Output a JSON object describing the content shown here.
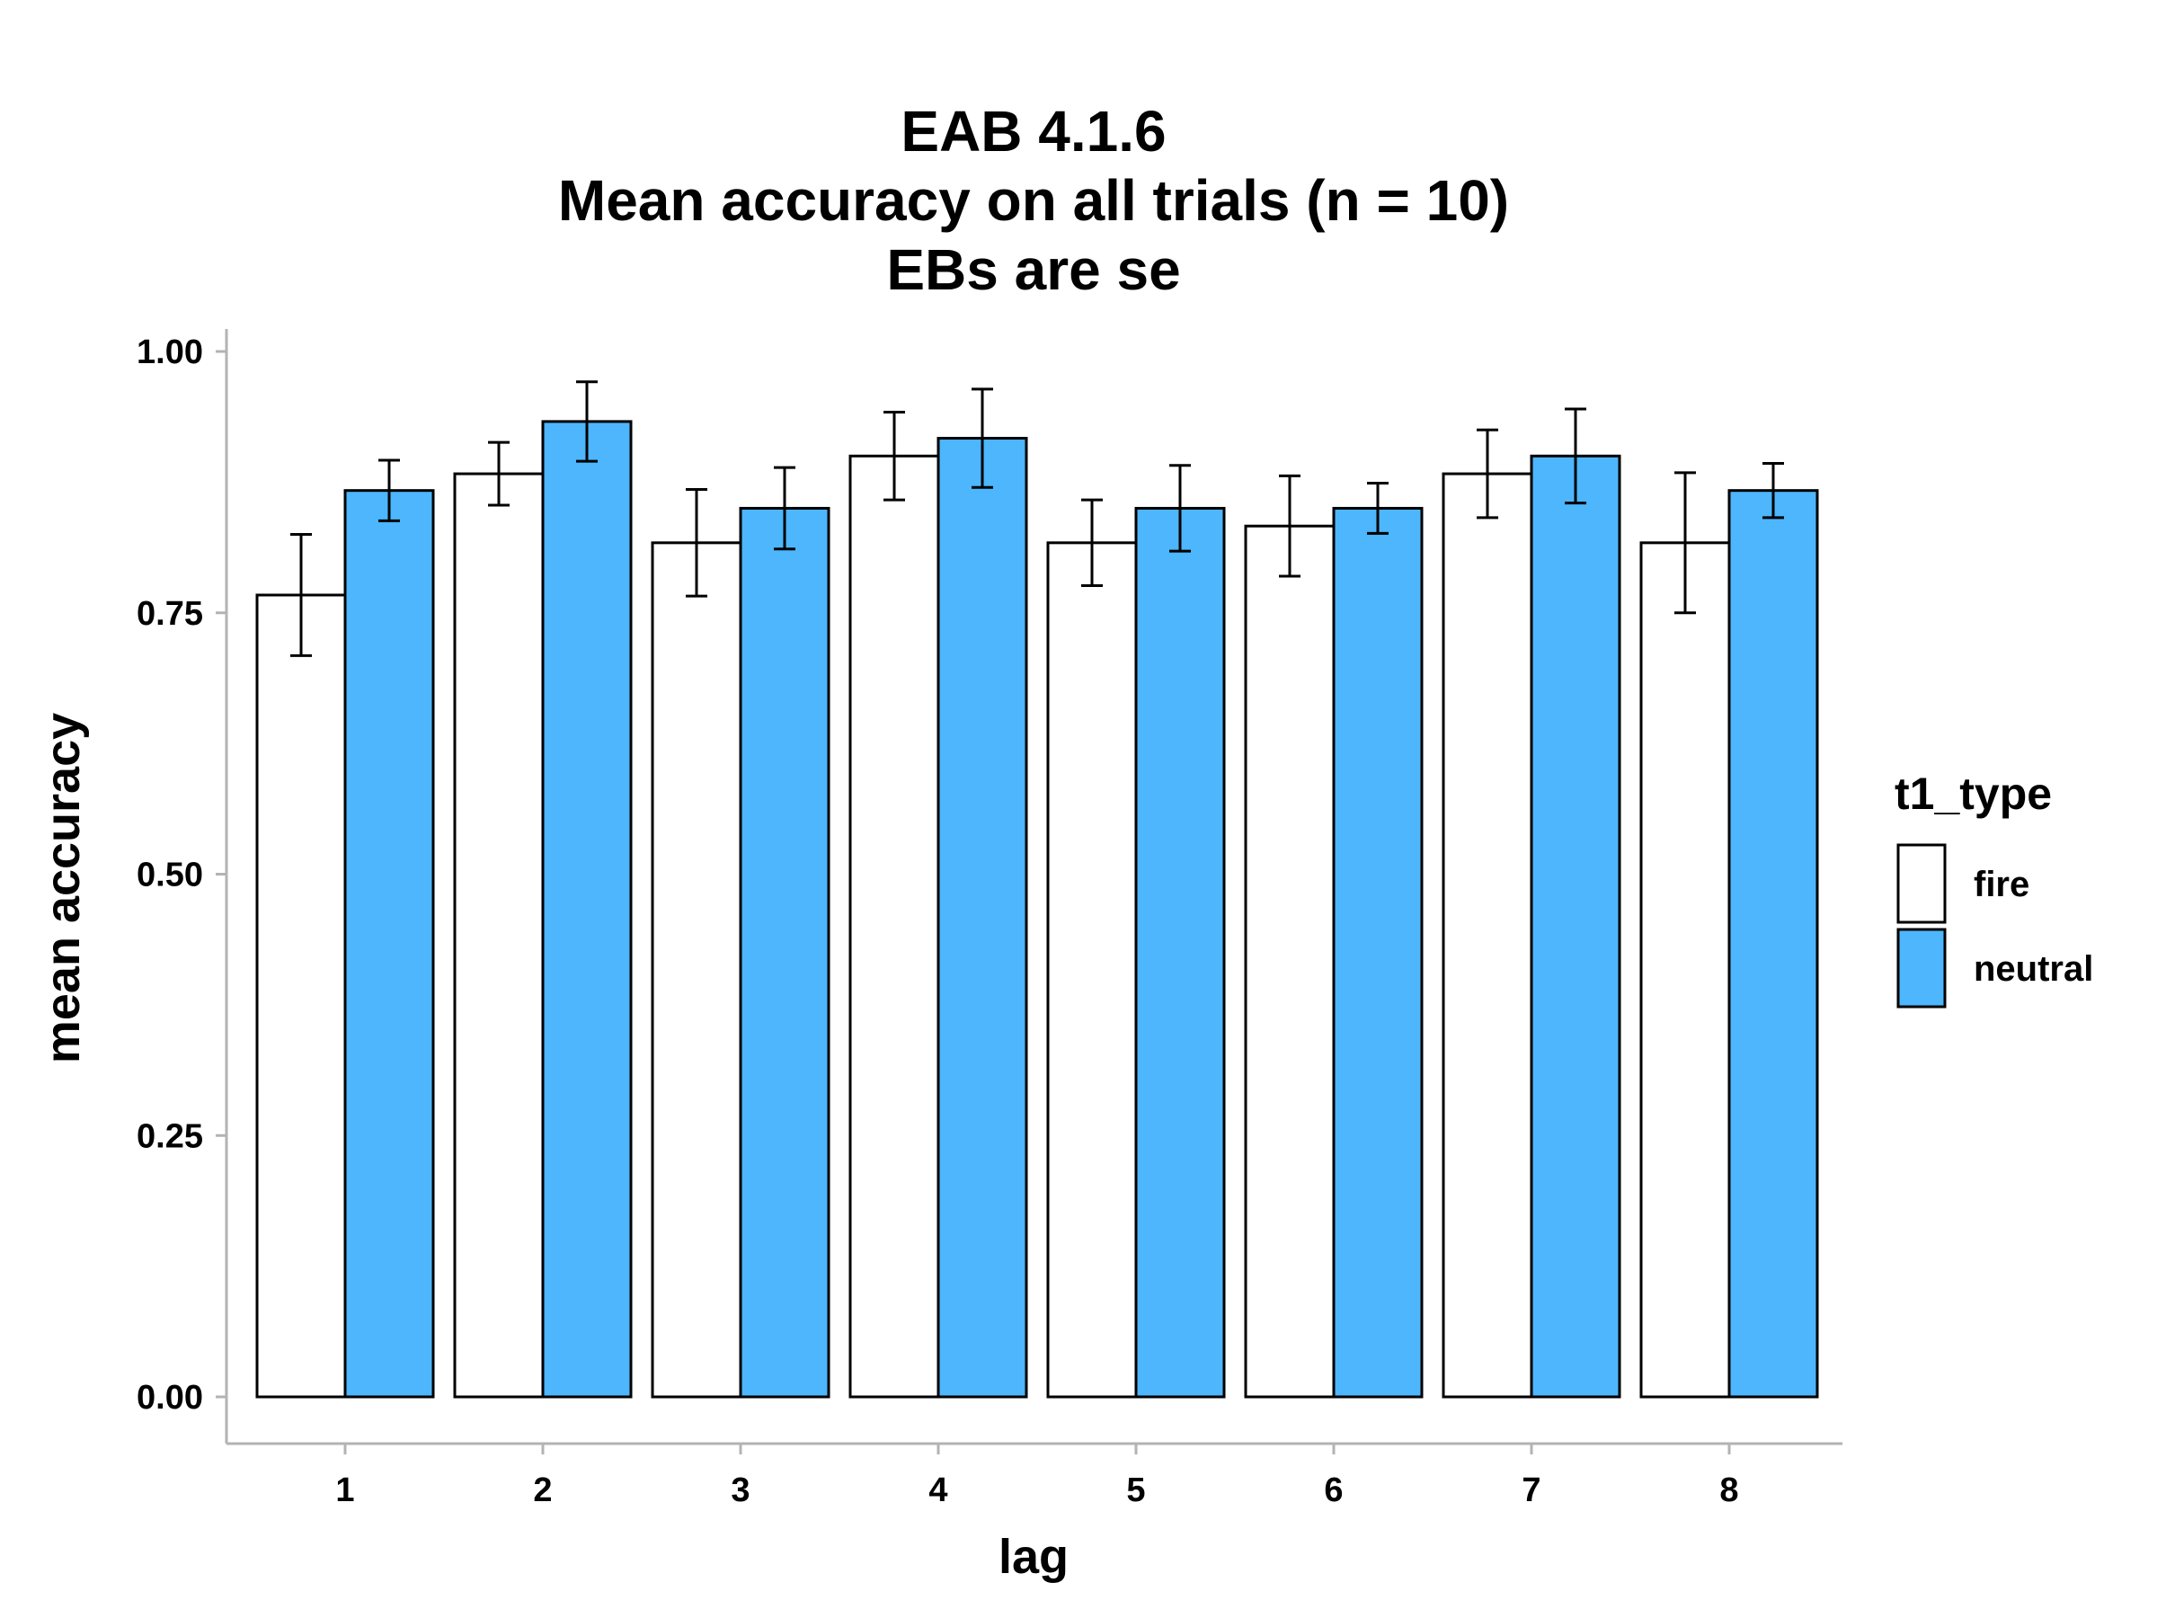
{
  "chart_data": {
    "type": "bar",
    "title_lines": [
      "EAB 4.1.6",
      "Mean accuracy on all trials (n = 10)",
      "EBs are se"
    ],
    "xlabel": "lag",
    "ylabel": "mean accuracy",
    "categories": [
      "1",
      "2",
      "3",
      "4",
      "5",
      "6",
      "7",
      "8"
    ],
    "ylim": [
      0,
      1
    ],
    "yticks": [
      0,
      0.25,
      0.5,
      0.75,
      1.0
    ],
    "ytick_labels": [
      "0.00",
      "0.25",
      "0.50",
      "0.75",
      "1.00"
    ],
    "grid": false,
    "error_bars": "se",
    "legend": {
      "title": "t1_type",
      "placement": "right"
    },
    "series": [
      {
        "name": "fire",
        "color": "#ffffff",
        "values": [
          0.767,
          0.883,
          0.817,
          0.9,
          0.817,
          0.833,
          0.883,
          0.817
        ],
        "err_low": [
          0.709,
          0.853,
          0.766,
          0.858,
          0.776,
          0.785,
          0.841,
          0.75
        ],
        "err_high": [
          0.825,
          0.913,
          0.868,
          0.942,
          0.858,
          0.881,
          0.925,
          0.884
        ]
      },
      {
        "name": "neutral",
        "color": "#4db6fc",
        "values": [
          0.867,
          0.933,
          0.85,
          0.917,
          0.85,
          0.85,
          0.9,
          0.867
        ],
        "err_low": [
          0.838,
          0.895,
          0.811,
          0.87,
          0.809,
          0.826,
          0.855,
          0.841
        ],
        "err_high": [
          0.896,
          0.971,
          0.889,
          0.964,
          0.891,
          0.874,
          0.945,
          0.893
        ]
      }
    ]
  }
}
